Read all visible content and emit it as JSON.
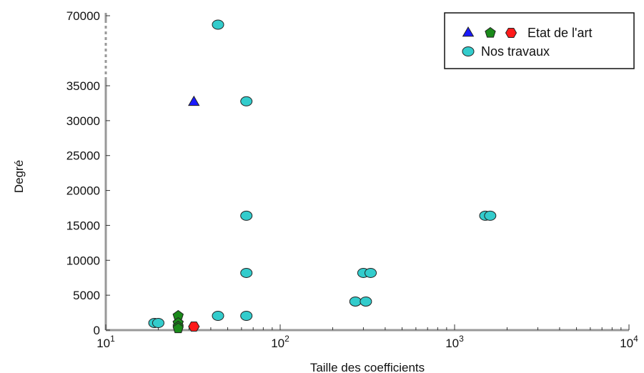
{
  "chart_data": {
    "type": "scatter",
    "xlabel": "Taille des coefficients",
    "ylabel": "Degré",
    "xscale": "log",
    "xlim": [
      10,
      10000
    ],
    "ylim_lower": [
      0,
      35000
    ],
    "ylim_upper_tick": 70000,
    "axis_break": true,
    "x_ticks": [
      {
        "value": 10,
        "base": "10",
        "exp": "1"
      },
      {
        "value": 100,
        "base": "10",
        "exp": "2"
      },
      {
        "value": 1000,
        "base": "10",
        "exp": "3"
      },
      {
        "value": 10000,
        "base": "10",
        "exp": "4"
      }
    ],
    "y_ticks": [
      0,
      5000,
      10000,
      15000,
      20000,
      25000,
      30000,
      35000,
      70000
    ],
    "grid": false,
    "legend_position": "top-right",
    "legend": [
      {
        "label": "Etat de l'art",
        "markers": [
          "triangle-blue",
          "pentagon-green",
          "hexagon-red"
        ]
      },
      {
        "label": "Nos travaux",
        "markers": [
          "circle-cyan"
        ]
      }
    ],
    "series": [
      {
        "name": "Etat de l'art",
        "marker": "triangle",
        "color": "#1a1aff",
        "points": [
          {
            "x": 32,
            "y": 32768
          }
        ]
      },
      {
        "name": "Etat de l'art",
        "marker": "pentagon",
        "color": "#1a8a1a",
        "points": [
          {
            "x": 26,
            "y": 2048
          },
          {
            "x": 26,
            "y": 1024
          },
          {
            "x": 26,
            "y": 512
          },
          {
            "x": 26,
            "y": 256
          }
        ]
      },
      {
        "name": "Etat de l'art",
        "marker": "hexagon",
        "color": "#ff1a1a",
        "points": [
          {
            "x": 32,
            "y": 512
          }
        ]
      },
      {
        "name": "Nos travaux",
        "marker": "circle",
        "color": "#33cccc",
        "points": [
          {
            "x": 19,
            "y": 1024
          },
          {
            "x": 20,
            "y": 1024
          },
          {
            "x": 44,
            "y": 2048
          },
          {
            "x": 64,
            "y": 2048
          },
          {
            "x": 64,
            "y": 8192
          },
          {
            "x": 64,
            "y": 16384
          },
          {
            "x": 64,
            "y": 32768
          },
          {
            "x": 44,
            "y": 65536
          },
          {
            "x": 270,
            "y": 4096
          },
          {
            "x": 310,
            "y": 4096
          },
          {
            "x": 300,
            "y": 8192
          },
          {
            "x": 330,
            "y": 8192
          },
          {
            "x": 1500,
            "y": 16384
          },
          {
            "x": 1600,
            "y": 16384
          }
        ]
      }
    ]
  }
}
